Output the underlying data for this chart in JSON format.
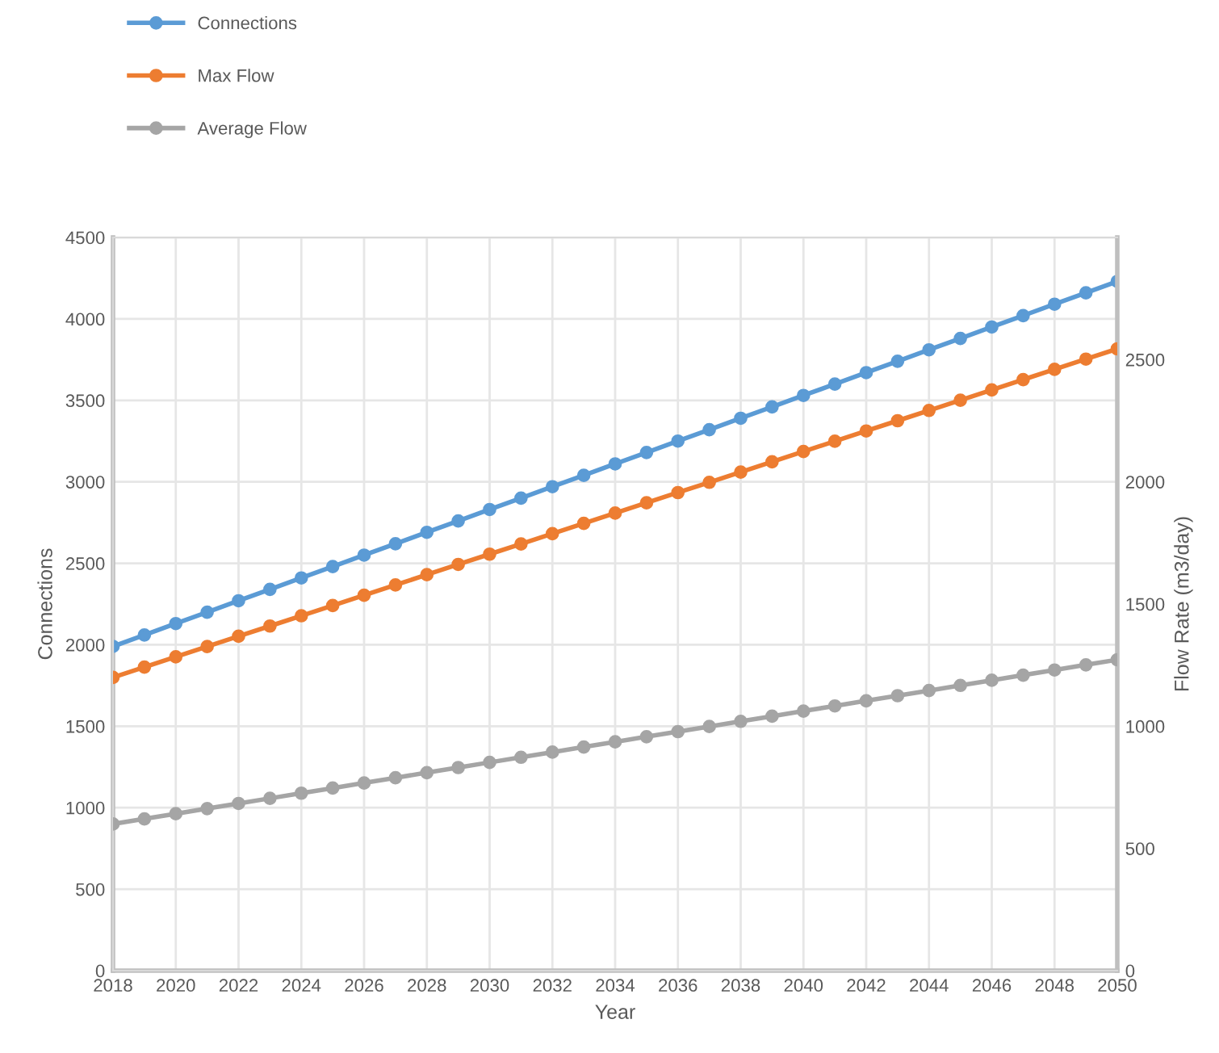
{
  "chart_data": {
    "type": "line",
    "xlabel": "Year",
    "ylabel": "Connections",
    "y2label": "Flow Rate (m3/day)",
    "x": [
      2018,
      2019,
      2020,
      2021,
      2022,
      2023,
      2024,
      2025,
      2026,
      2027,
      2028,
      2029,
      2030,
      2031,
      2032,
      2033,
      2034,
      2035,
      2036,
      2037,
      2038,
      2039,
      2040,
      2041,
      2042,
      2043,
      2044,
      2045,
      2046,
      2047,
      2048,
      2049,
      2050
    ],
    "xlim": [
      2018,
      2050
    ],
    "xticks": [
      2018,
      2020,
      2022,
      2024,
      2026,
      2028,
      2030,
      2032,
      2034,
      2036,
      2038,
      2040,
      2042,
      2044,
      2046,
      2048,
      2050
    ],
    "ylim": [
      0,
      4500
    ],
    "yticks": [
      0,
      500,
      1000,
      1500,
      2000,
      2500,
      3000,
      3500,
      4000,
      4500
    ],
    "y2lim": [
      0,
      3000
    ],
    "y2ticks": [
      0,
      500,
      1000,
      1500,
      2000,
      2500
    ],
    "grid": true,
    "legend": "top left",
    "marker": "circle",
    "line_style": "solid",
    "series": [
      {
        "name": "Connections",
        "color": "#5b9bd5",
        "values": [
          1990,
          2060,
          2130,
          2200,
          2270,
          2340,
          2410,
          2480,
          2550,
          2620,
          2690,
          2760,
          2830,
          2900,
          2970,
          3040,
          3110,
          3180,
          3250,
          3320,
          3390,
          3460,
          3530,
          3600,
          3670,
          3740,
          3810,
          3880,
          3950,
          4020,
          4090,
          4160,
          4230
        ]
      },
      {
        "name": "Max Flow",
        "color": "#ed7d31",
        "axis": "y2",
        "values": [
          1200,
          1242,
          1284,
          1326,
          1368,
          1410,
          1452,
          1494,
          1536,
          1578,
          1620,
          1662,
          1704,
          1746,
          1788,
          1830,
          1872,
          1914,
          1956,
          1998,
          2040,
          2082,
          2124,
          2166,
          2208,
          2250,
          2292,
          2334,
          2376,
          2418,
          2460,
          2502,
          2544
        ]
      },
      {
        "name": "Average Flow",
        "color": "#a5a5a5",
        "axis": "y2",
        "values": [
          600,
          621,
          642,
          663,
          684,
          705,
          726,
          747,
          768,
          789,
          810,
          831,
          852,
          873,
          894,
          915,
          936,
          957,
          978,
          999,
          1020,
          1041,
          1062,
          1083,
          1104,
          1125,
          1146,
          1167,
          1188,
          1209,
          1230,
          1251,
          1272
        ]
      }
    ]
  }
}
